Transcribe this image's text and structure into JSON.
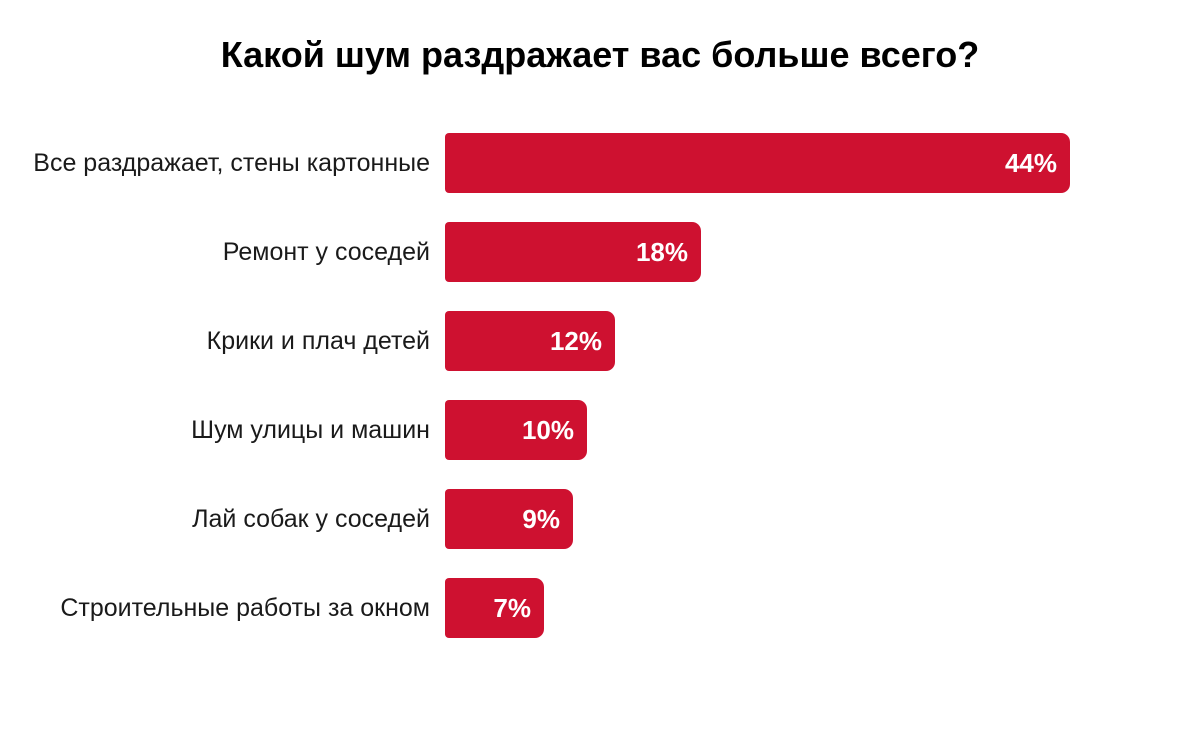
{
  "colors": {
    "background": "#ffffff",
    "bar": "#ce1130",
    "value_text": "#ffffff",
    "label_text": "#1a1a1a",
    "title_text": "#000000"
  },
  "chart_data": {
    "type": "bar",
    "orientation": "horizontal",
    "title": "Какой шум раздражает вас больше всего?",
    "categories": [
      "Все раздражает, стены картонные",
      "Ремонт у соседей",
      "Крики и плач детей",
      "Шум улицы и машин",
      "Лай собак у соседей",
      "Строительные работы за окном"
    ],
    "values": [
      44,
      18,
      12,
      10,
      9,
      7
    ],
    "value_labels": [
      "44%",
      "18%",
      "12%",
      "10%",
      "9%",
      "7%"
    ],
    "unit": "%",
    "xlim": [
      0,
      44
    ],
    "grid": false,
    "legend": false,
    "axes_visible": false,
    "bar_color": "#ce1130",
    "value_label_position": "inside-right"
  }
}
